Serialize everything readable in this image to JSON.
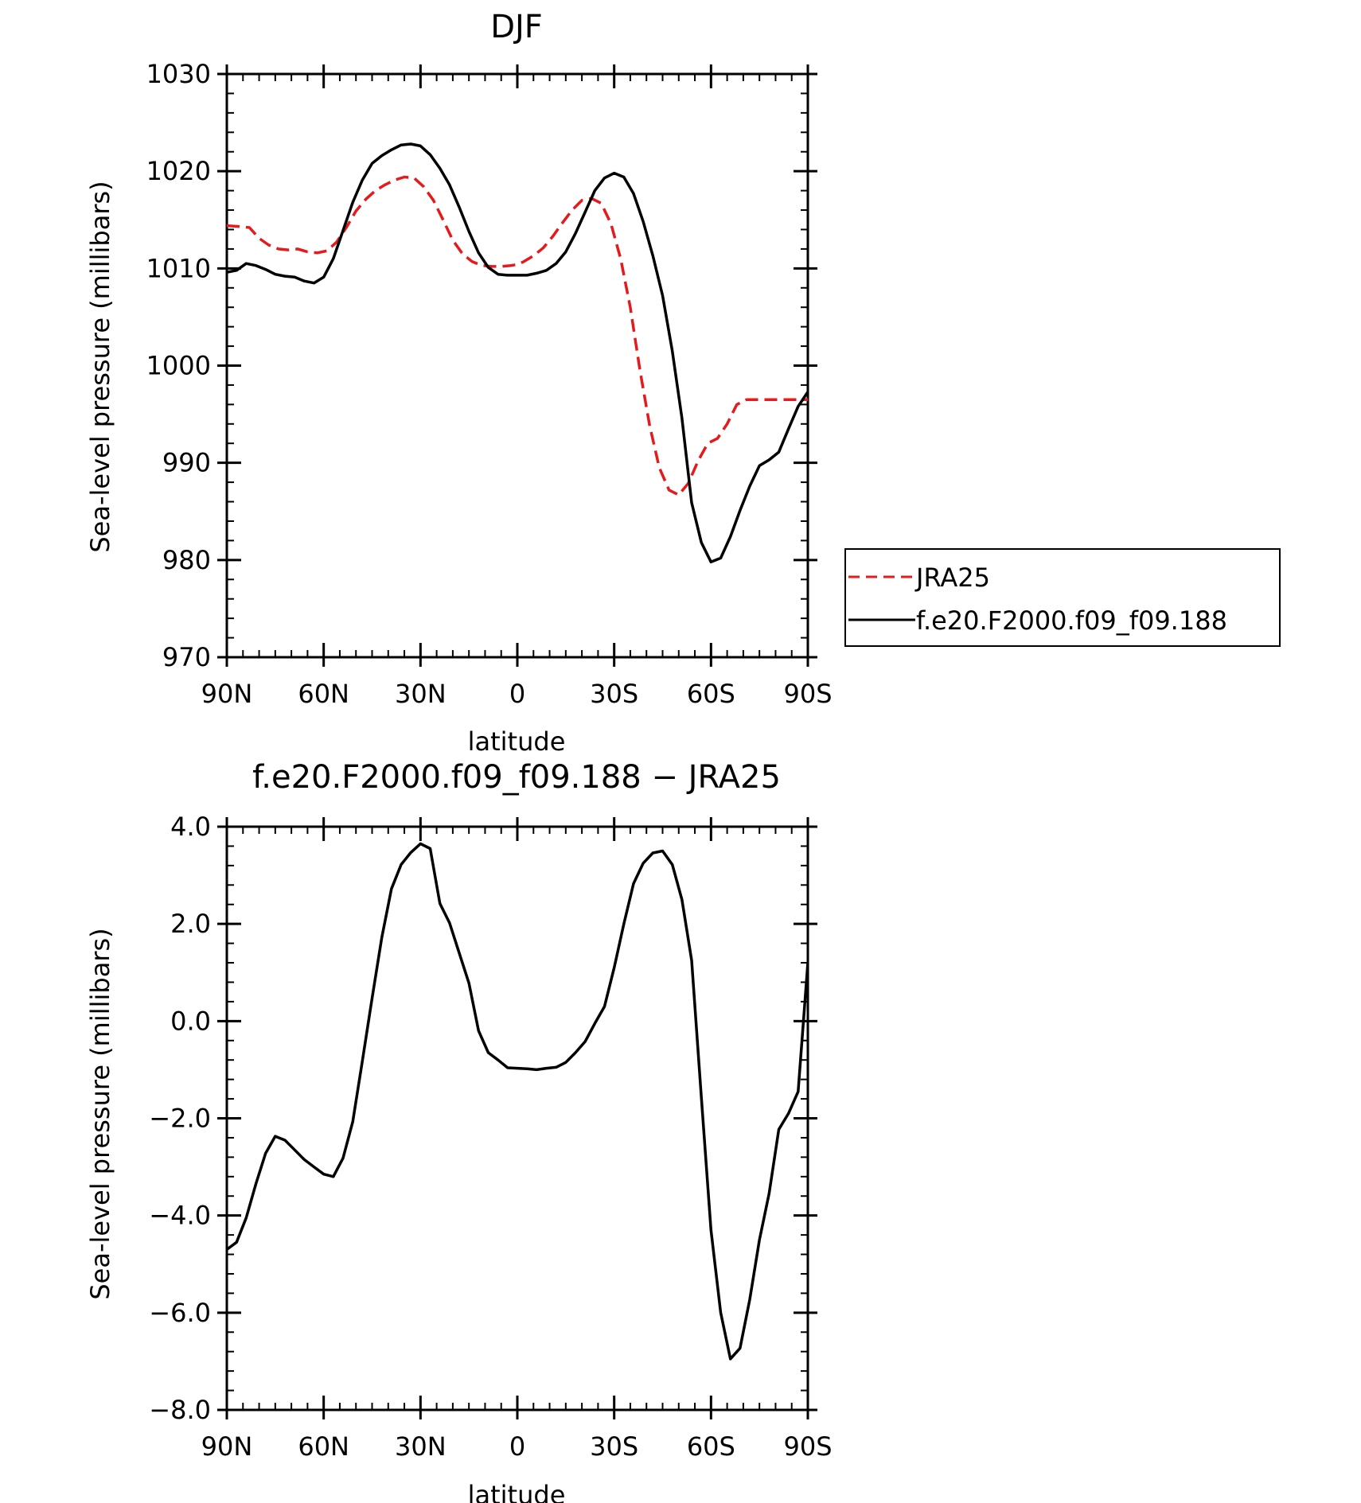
{
  "chart_data": [
    {
      "type": "line",
      "title": "DJF",
      "xlabel": "latitude",
      "ylabel": "Sea-level pressure (millibars)",
      "xlim": [
        90,
        -90
      ],
      "ylim": [
        970,
        1030
      ],
      "xticks": [
        90,
        60,
        30,
        0,
        -30,
        -60,
        -90
      ],
      "xtick_labels": [
        "90N",
        "60N",
        "30N",
        "0",
        "30S",
        "60S",
        "90S"
      ],
      "yticks": [
        970,
        980,
        990,
        1000,
        1010,
        1020,
        1030
      ],
      "ytick_labels": [
        "970",
        "980",
        "990",
        "1000",
        "1010",
        "1020",
        "1030"
      ],
      "legend_position": "right",
      "series": [
        {
          "name": "JRA25",
          "color": "#e41a1c",
          "dash": "dashed",
          "x": [
            90,
            86,
            83,
            80,
            77,
            74,
            71,
            68,
            65,
            62,
            59,
            56,
            53,
            50,
            47,
            44,
            41,
            38,
            35,
            32,
            29,
            26,
            23,
            20,
            17,
            14,
            11,
            8,
            5,
            2,
            0,
            -2,
            -5,
            -8,
            -11,
            -14,
            -17,
            -20,
            -23,
            -26,
            -29,
            -32,
            -35,
            -38,
            -41,
            -44,
            -47,
            -50,
            -53,
            -56,
            -59,
            -62,
            -65,
            -68,
            -71,
            -74,
            -77,
            -80,
            -83,
            -86,
            -90
          ],
          "y": [
            1014.4,
            1014.3,
            1014.2,
            1013.1,
            1012.4,
            1012.0,
            1011.9,
            1012.0,
            1011.7,
            1011.6,
            1011.8,
            1012.7,
            1014.2,
            1015.9,
            1017.1,
            1018.0,
            1018.6,
            1019.1,
            1019.4,
            1019.3,
            1018.4,
            1017.0,
            1015.0,
            1012.9,
            1011.5,
            1010.7,
            1010.3,
            1010.2,
            1010.2,
            1010.3,
            1010.4,
            1010.7,
            1011.3,
            1012.1,
            1013.3,
            1014.7,
            1016.0,
            1017.0,
            1017.2,
            1016.7,
            1014.6,
            1011.0,
            1006.0,
            999.5,
            993.8,
            989.5,
            987.2,
            986.7,
            987.9,
            990.2,
            992.0,
            992.5,
            994.0,
            996.0,
            996.5,
            996.5,
            996.5,
            996.5,
            996.5,
            996.5,
            996.5
          ]
        },
        {
          "name": "f.e20.F2000.f09_f09.188",
          "color": "#000000",
          "dash": "solid",
          "x": [
            90,
            87,
            84,
            81,
            78,
            75,
            72,
            69,
            66,
            63,
            60,
            57,
            54,
            51,
            48,
            45,
            42,
            39,
            36,
            33,
            30,
            27,
            24,
            21,
            18,
            15,
            12,
            9,
            6,
            3,
            0,
            -3,
            -6,
            -9,
            -12,
            -15,
            -18,
            -21,
            -24,
            -27,
            -30,
            -33,
            -36,
            -39,
            -42,
            -45,
            -48,
            -51,
            -54,
            -57,
            -60,
            -63,
            -66,
            -69,
            -72,
            -75,
            -78,
            -81,
            -84,
            -87,
            -90
          ],
          "y": [
            1009.6,
            1009.8,
            1010.5,
            1010.3,
            1009.9,
            1009.4,
            1009.2,
            1009.1,
            1008.7,
            1008.5,
            1009.1,
            1011.0,
            1013.9,
            1016.8,
            1019.1,
            1020.8,
            1021.6,
            1022.2,
            1022.7,
            1022.8,
            1022.6,
            1021.7,
            1020.3,
            1018.6,
            1016.3,
            1013.8,
            1011.6,
            1010.1,
            1009.4,
            1009.3,
            1009.3,
            1009.3,
            1009.5,
            1009.8,
            1010.5,
            1011.7,
            1013.6,
            1015.8,
            1018.0,
            1019.3,
            1019.8,
            1019.4,
            1017.7,
            1014.8,
            1011.3,
            1007.2,
            1001.5,
            994.6,
            985.9,
            981.8,
            979.8,
            980.2,
            982.4,
            985.1,
            987.6,
            989.7,
            990.3,
            991.1,
            993.5,
            995.8,
            997.3
          ]
        }
      ]
    },
    {
      "type": "line",
      "title": "f.e20.F2000.f09_f09.188 − JRA25",
      "xlabel": "latitude",
      "ylabel": "Sea-level pressure (millibars)",
      "xlim": [
        90,
        -90
      ],
      "ylim": [
        -8,
        4
      ],
      "xticks": [
        90,
        60,
        30,
        0,
        -30,
        -60,
        -90
      ],
      "xtick_labels": [
        "90N",
        "60N",
        "30N",
        "0",
        "30S",
        "60S",
        "90S"
      ],
      "yticks": [
        -8,
        -6,
        -4,
        -2,
        0,
        2,
        4
      ],
      "ytick_labels": [
        "−8.0",
        "−6.0",
        "−4.0",
        "−2.0",
        "0.0",
        "2.0",
        "4.0"
      ],
      "series": [
        {
          "name": "",
          "color": "#000000",
          "dash": "solid",
          "x": [
            90,
            87,
            84,
            81,
            78,
            75,
            72,
            69,
            66,
            63,
            60,
            57,
            54,
            51,
            48,
            45,
            42,
            39,
            36,
            33,
            30,
            27,
            24,
            21,
            18,
            15,
            12,
            9,
            6,
            3,
            0,
            -3,
            -6,
            -9,
            -12,
            -15,
            -18,
            -21,
            -24,
            -27,
            -30,
            -33,
            -36,
            -39,
            -42,
            -45,
            -48,
            -51,
            -54,
            -57,
            -60,
            -63,
            -66,
            -69,
            -72,
            -75,
            -78,
            -81,
            -84,
            -87,
            -90
          ],
          "y": [
            -4.7,
            -4.55,
            -4.05,
            -3.35,
            -2.72,
            -2.37,
            -2.45,
            -2.65,
            -2.85,
            -3.0,
            -3.15,
            -3.2,
            -2.82,
            -2.07,
            -0.82,
            0.47,
            1.72,
            2.72,
            3.22,
            3.47,
            3.65,
            3.55,
            2.42,
            2.02,
            1.4,
            0.78,
            -0.2,
            -0.65,
            -0.8,
            -0.96,
            -0.97,
            -0.98,
            -1.0,
            -0.97,
            -0.95,
            -0.85,
            -0.65,
            -0.42,
            -0.05,
            0.3,
            1.1,
            2.0,
            2.83,
            3.25,
            3.46,
            3.5,
            3.22,
            2.5,
            1.25,
            -1.57,
            -4.3,
            -6.0,
            -6.95,
            -6.73,
            -5.73,
            -4.5,
            -3.55,
            -2.23,
            -1.9,
            -1.45,
            1.2
          ]
        }
      ]
    }
  ]
}
